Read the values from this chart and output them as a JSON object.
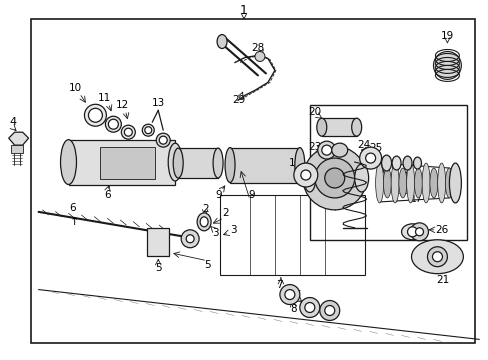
{
  "bg_color": "#ffffff",
  "border_color": "#000000",
  "fig_width": 4.89,
  "fig_height": 3.6,
  "dpi": 100
}
